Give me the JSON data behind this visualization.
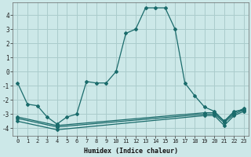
{
  "xlabel": "Humidex (Indice chaleur)",
  "ylabel": "",
  "background_color": "#cce8e8",
  "grid_color": "#aacccc",
  "line_color": "#1a6b6b",
  "xlim": [
    -0.5,
    23.5
  ],
  "ylim": [
    -4.5,
    4.9
  ],
  "yticks": [
    -4,
    -3,
    -2,
    -1,
    0,
    1,
    2,
    3,
    4
  ],
  "xtick_labels": [
    "0",
    "1",
    "2",
    "3",
    "4",
    "5",
    "6",
    "7",
    "8",
    "9",
    "10",
    "11",
    "12",
    "13",
    "14",
    "15",
    "16",
    "17",
    "18",
    "19",
    "20",
    "21",
    "22",
    "23"
  ],
  "series": [
    {
      "x": [
        0,
        1,
        2,
        3,
        4,
        5,
        6,
        7,
        8,
        9,
        10,
        11,
        12,
        13,
        14,
        15,
        16,
        17,
        18,
        19,
        20,
        21,
        22,
        23
      ],
      "y": [
        -0.8,
        -2.3,
        -2.4,
        -3.2,
        -3.7,
        -3.2,
        -3.0,
        -0.7,
        -0.8,
        -0.8,
        0.0,
        2.7,
        3.0,
        4.5,
        4.5,
        4.5,
        3.0,
        -0.8,
        -1.7,
        -2.5,
        -2.8,
        -3.5,
        -2.8,
        -2.7
      ]
    },
    {
      "x": [
        0,
        4,
        19,
        20,
        21,
        22,
        23
      ],
      "y": [
        -3.2,
        -3.8,
        -2.9,
        -2.9,
        -3.5,
        -2.9,
        -2.6
      ]
    },
    {
      "x": [
        0,
        4,
        19,
        20,
        21,
        22,
        23
      ],
      "y": [
        -3.3,
        -3.9,
        -3.0,
        -3.0,
        -3.6,
        -3.0,
        -2.7
      ]
    },
    {
      "x": [
        0,
        4,
        19,
        20,
        21,
        22,
        23
      ],
      "y": [
        -3.5,
        -4.1,
        -3.1,
        -3.1,
        -3.8,
        -3.1,
        -2.8
      ]
    }
  ]
}
